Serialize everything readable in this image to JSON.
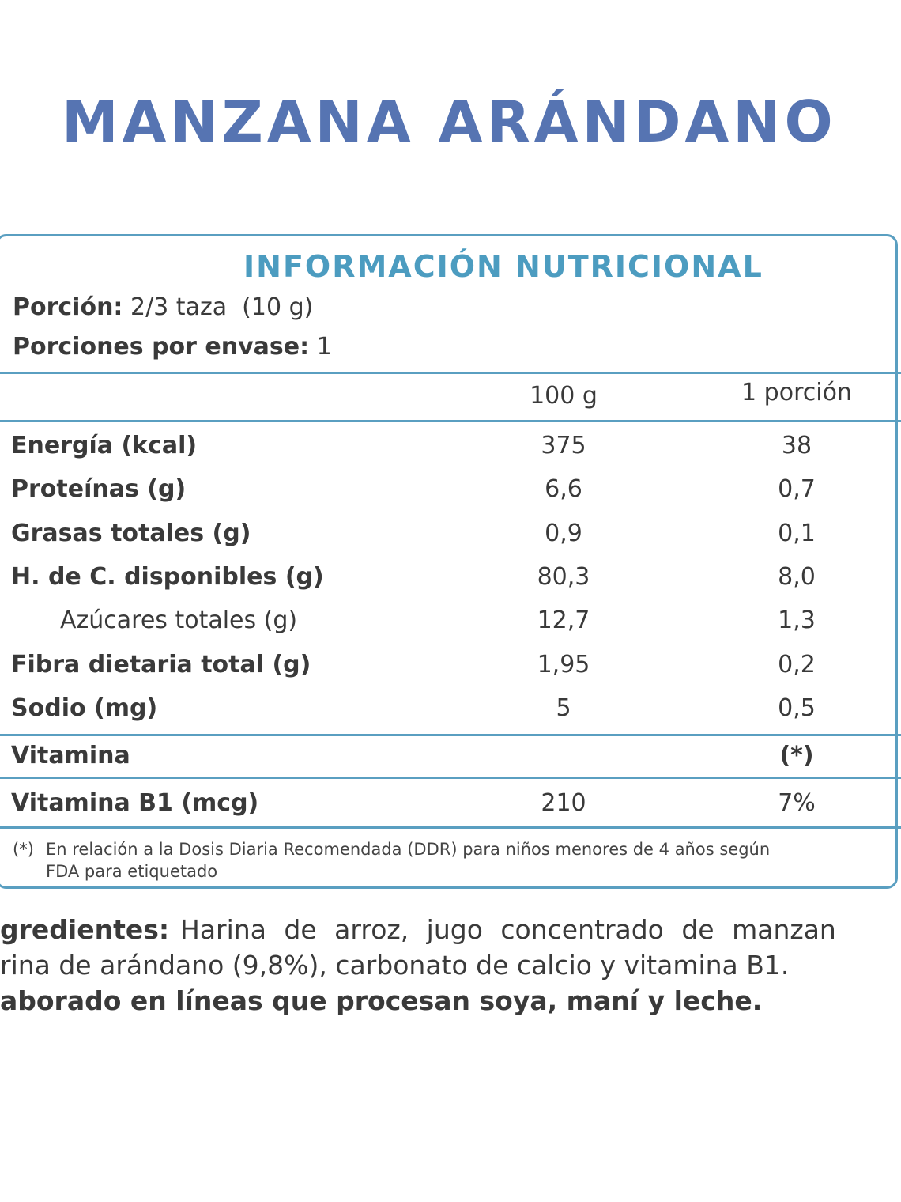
{
  "title": "MANZANA ARÁNDANO",
  "table": {
    "title": "INFORMACIÓN NUTRICIONAL",
    "serving": {
      "label": "Porción:",
      "value": "2/3 taza  (10 g)"
    },
    "servings_per_container": {
      "label": "Porciones por envase:",
      "value": "1"
    },
    "columns": [
      "100 g",
      "1 porción"
    ],
    "rows": [
      [
        "Energía (kcal)",
        "375",
        "38"
      ],
      [
        "Proteínas (g)",
        "6,6",
        "0,7"
      ],
      [
        "Grasas totales (g)",
        "0,9",
        "0,1"
      ],
      [
        "H. de C. disponibles (g)",
        "80,3",
        "8,0"
      ],
      [
        "Azúcares totales (g)",
        "12,7",
        "1,3"
      ],
      [
        "Fibra dietaria total (g)",
        "1,95",
        "0,2"
      ],
      [
        "Sodio (mg)",
        "5",
        "0,5"
      ]
    ],
    "vitamin_header": [
      "Vitamina",
      "(*)"
    ],
    "vitamin_rows": [
      [
        "Vitamina B1 (mcg)",
        "210",
        "7%"
      ]
    ],
    "footnote": {
      "marker": "(*)",
      "lines": [
        "En relación a la Dosis Diaria Recomendada (DDR) para niños menores de 4 años según",
        "FDA para etiquetado"
      ]
    }
  },
  "ingredients": {
    "label": "gredientes:",
    "lines": [
      "Harina de arroz, jugo concentrado de manzan",
      "rina de arándano (9,8%), carbonato de calcio y vitamina B1."
    ],
    "allergens": "aborado en líneas que procesan soya, maní y leche."
  }
}
